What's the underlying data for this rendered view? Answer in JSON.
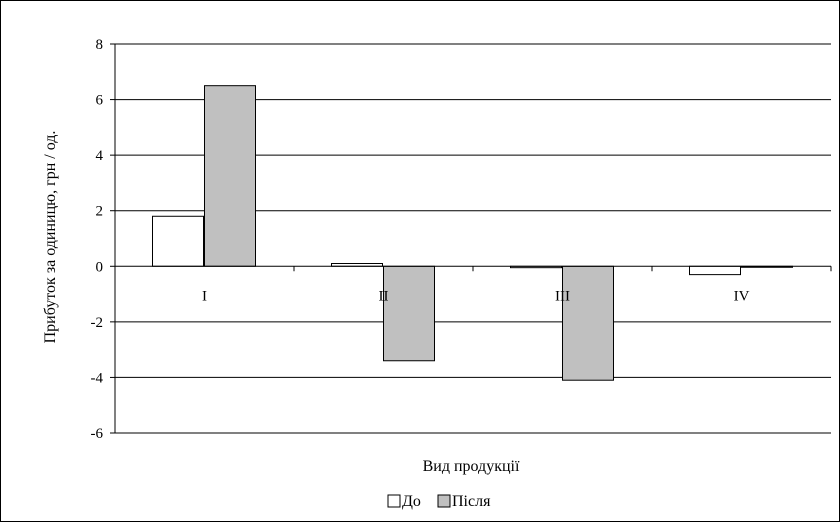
{
  "chart_data": {
    "type": "bar",
    "title": "",
    "xlabel": "Вид продукції",
    "ylabel": "Прибуток за одиницю, грн / од.",
    "categories": [
      "I",
      "II",
      "III",
      "IV"
    ],
    "series": [
      {
        "name": "До",
        "values": [
          1.8,
          0.1,
          -0.05,
          -0.3
        ],
        "color": "#ffffff"
      },
      {
        "name": "Після",
        "values": [
          6.5,
          -3.4,
          -4.1,
          0
        ],
        "color": "#c0c0c0"
      }
    ],
    "ylim": [
      -6,
      8
    ],
    "yticks": [
      "8",
      "6",
      "4",
      "2",
      "0",
      "-2",
      "-4",
      "-6"
    ],
    "ytick_values": [
      8,
      6,
      4,
      2,
      0,
      -2,
      -4,
      -6
    ],
    "grid": true,
    "legend": "bottom-center"
  }
}
